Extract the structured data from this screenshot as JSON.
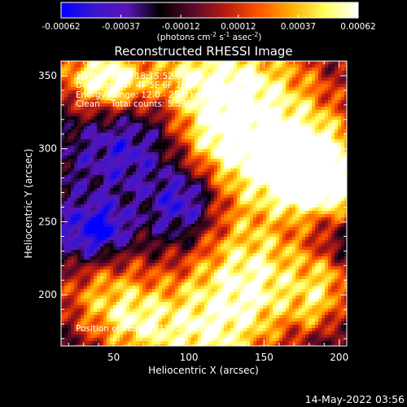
{
  "chart_data": {
    "type": "heatmap",
    "title": "Reconstructed RHESSI Image",
    "xlabel": "Heliocentric X (arcsec)",
    "ylabel": "Heliocentric Y (arcsec)",
    "xlim": [
      15,
      205
    ],
    "ylim": [
      165,
      360
    ],
    "x_ticks": [
      50,
      100,
      150,
      200
    ],
    "y_ticks": [
      200,
      250,
      300,
      350
    ],
    "colorbar": {
      "ticks": [
        "-0.00062",
        "-0.00037",
        "-0.00012",
        "0.00012",
        "0.00037",
        "0.00062"
      ],
      "tick_values": [
        -0.00062,
        -0.00037,
        -0.00012,
        0.00012,
        0.00037,
        0.00062
      ],
      "colors": [
        "#0000ff",
        "#3a16ce",
        "#5a14b6",
        "#000000",
        "#5a0a2a",
        "#b81b0e",
        "#ff5500",
        "#ffb000",
        "#ffff60",
        "#ffffff"
      ],
      "unit_parts": [
        "(photons cm",
        "-2",
        " s",
        "-1",
        " asec",
        "-2",
        ")"
      ]
    },
    "annotation_lines": [
      "20-May-2013 18:15:52.000 to 18:20:12.000",
      "Detectors: 3F 4F 5F 6F 7F 8F, Att 0",
      "Energy Range: 12.0 - 25.0 keV",
      "Clean    Total counts: 5.59E+03"
    ],
    "peak_label": "Position of Peak = [177,273]",
    "peak": [
      177,
      273
    ],
    "grid": false
  },
  "footer": {
    "timestamp": "14-May-2022 03:56"
  }
}
